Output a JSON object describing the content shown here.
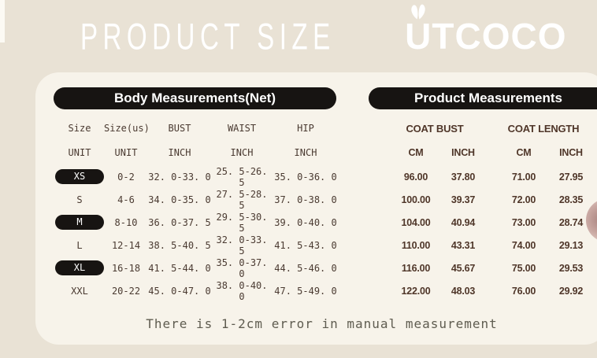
{
  "title": "PRODUCT SIZE",
  "brand": "UTCOCO",
  "note": "There is 1-2cm error in manual measurement",
  "body_table": {
    "header": "Body Measurements(Net)",
    "columns": [
      "Size",
      "Size(us)",
      "BUST",
      "WAIST",
      "HIP"
    ],
    "units": [
      "UNIT",
      "UNIT",
      "INCH",
      "INCH",
      "INCH"
    ],
    "rows": [
      {
        "size": "XS",
        "highlighted": true,
        "us": "0-2",
        "bust": "32. 0-33. 0",
        "waist": "25. 5-26. 5",
        "hip": "35. 0-36. 0"
      },
      {
        "size": "S",
        "highlighted": false,
        "us": "4-6",
        "bust": "34. 0-35. 0",
        "waist": "27. 5-28. 5",
        "hip": "37. 0-38. 0"
      },
      {
        "size": "M",
        "highlighted": true,
        "us": "8-10",
        "bust": "36. 0-37. 5",
        "waist": "29. 5-30. 5",
        "hip": "39. 0-40. 0"
      },
      {
        "size": "L",
        "highlighted": false,
        "us": "12-14",
        "bust": "38. 5-40. 5",
        "waist": "32. 0-33. 5",
        "hip": "41. 5-43. 0"
      },
      {
        "size": "XL",
        "highlighted": true,
        "us": "16-18",
        "bust": "41. 5-44. 0",
        "waist": "35. 0-37. 0",
        "hip": "44. 5-46. 0"
      },
      {
        "size": "XXL",
        "highlighted": false,
        "us": "20-22",
        "bust": "45. 0-47. 0",
        "waist": "38. 0-40. 0",
        "hip": "47. 5-49. 0"
      }
    ]
  },
  "product_table": {
    "header": "Product Measurements",
    "groups": [
      "COAT BUST",
      "COAT LENGTH"
    ],
    "units": [
      "CM",
      "INCH",
      "CM",
      "INCH"
    ],
    "rows": [
      [
        "96.00",
        "37.80",
        "71.00",
        "27.95"
      ],
      [
        "100.00",
        "39.37",
        "72.00",
        "28.35"
      ],
      [
        "104.00",
        "40.94",
        "73.00",
        "28.74"
      ],
      [
        "110.00",
        "43.31",
        "74.00",
        "29.13"
      ],
      [
        "116.00",
        "45.67",
        "75.00",
        "29.53"
      ],
      [
        "122.00",
        "48.03",
        "76.00",
        "29.92"
      ]
    ]
  },
  "colors": {
    "bg": "#e9e2d5",
    "panel": "#f7f3ea",
    "pill": "#171412",
    "body_text": "#4a3a31",
    "product_text": "#4f3629",
    "note_text": "#5f5c50",
    "sticker_pink": "#c9a8a2"
  }
}
